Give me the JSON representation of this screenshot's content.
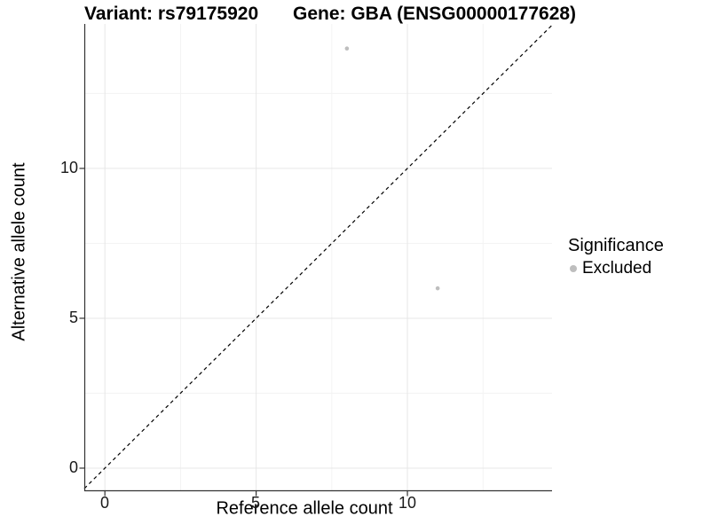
{
  "header": {
    "variant_title": "Variant: rs79175920",
    "gene_title": "Gene: GBA (ENSG00000177628)"
  },
  "legend": {
    "title": "Significance",
    "items": [
      {
        "label": "Excluded",
        "color": "#bebebe"
      }
    ]
  },
  "chart_data": {
    "type": "scatter",
    "title": "Variant: rs79175920 — Gene: GBA (ENSG00000177628)",
    "xlabel": "Reference allele count",
    "ylabel": "Alternative allele count",
    "xlim": [
      -0.68,
      14.78
    ],
    "ylim": [
      -0.77,
      14.82
    ],
    "x_ticks": [
      0,
      5,
      10
    ],
    "y_ticks": [
      0,
      5,
      10
    ],
    "x_minor_ticks": [
      2.5,
      7.5,
      12.5
    ],
    "y_minor_ticks": [
      2.5,
      7.5,
      12.5
    ],
    "grid": true,
    "legend_position": "right",
    "series": [
      {
        "name": "Excluded",
        "points": [
          {
            "x": 8,
            "y": 14
          },
          {
            "x": 11,
            "y": 6
          }
        ]
      }
    ],
    "identity_line": {
      "slope": 1,
      "intercept": 0,
      "style": "dashed",
      "color": "#000000"
    },
    "colors": {
      "point": "#bebebe",
      "grid_major": "#e7e7e7",
      "grid_minor": "#f3f3f3",
      "axis": "#333333",
      "tick_text": "#1a1a1a"
    }
  }
}
